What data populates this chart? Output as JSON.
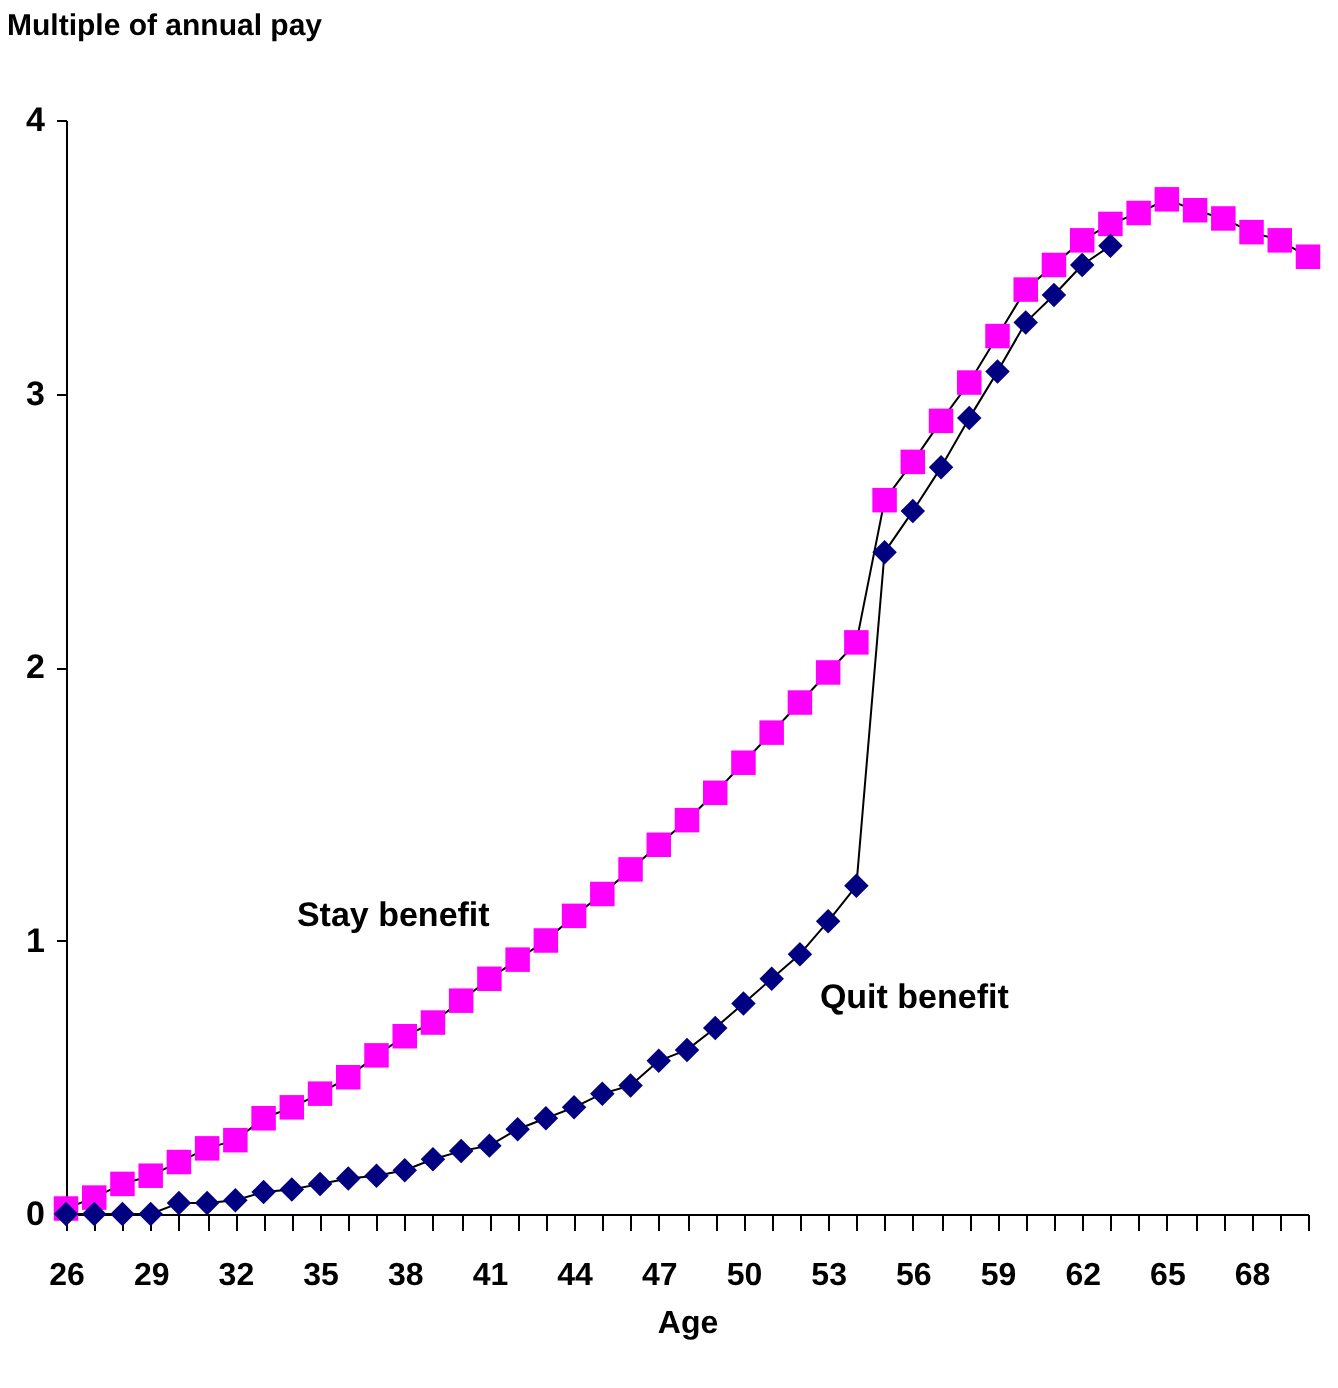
{
  "chart_data": {
    "type": "line",
    "xlabel": "Age",
    "ylabel": "Multiple of annual pay",
    "categories": [
      "26",
      null,
      null,
      "29",
      null,
      null,
      "32",
      null,
      null,
      "35",
      null,
      null,
      "38",
      null,
      null,
      "41",
      null,
      null,
      "44",
      null,
      null,
      "47",
      null,
      null,
      "50",
      null,
      null,
      "53",
      null,
      null,
      "56",
      null,
      null,
      "59",
      null,
      null,
      "62",
      null,
      null,
      "65",
      null,
      null,
      "68",
      null,
      null
    ],
    "series": [
      {
        "name": "Stay benefit",
        "color": "#ff00ff",
        "marker": "square",
        "values": [
          0.02,
          0.06,
          0.11,
          0.14,
          0.19,
          0.24,
          0.27,
          0.35,
          0.39,
          0.44,
          0.5,
          0.58,
          0.65,
          0.7,
          0.78,
          0.86,
          0.93,
          1.0,
          1.09,
          1.17,
          1.26,
          1.35,
          1.44,
          1.54,
          1.65,
          1.76,
          1.87,
          1.98,
          2.09,
          2.61,
          2.75,
          2.9,
          3.04,
          3.21,
          3.38,
          3.47,
          3.56,
          3.62,
          3.66,
          3.71,
          3.67,
          3.64,
          3.59,
          3.56,
          3.5
        ]
      },
      {
        "name": "Quit benefit",
        "color": "#000080",
        "marker": "diamond",
        "values": [
          0,
          0,
          0,
          0,
          0.04,
          0.04,
          0.05,
          0.08,
          0.09,
          0.11,
          0.13,
          0.14,
          0.16,
          0.2,
          0.23,
          0.25,
          0.31,
          0.35,
          0.39,
          0.44,
          0.47,
          0.56,
          0.6,
          0.68,
          0.77,
          0.86,
          0.95,
          1.07,
          1.2,
          2.42,
          2.57,
          2.73,
          2.91,
          3.08,
          3.26,
          3.36,
          3.47,
          3.54,
          null,
          null,
          null,
          null,
          null,
          null,
          null
        ]
      }
    ],
    "ylim": [
      0,
      4
    ],
    "yticks": [
      0,
      1,
      2,
      3,
      4
    ],
    "line_style": "solid"
  }
}
